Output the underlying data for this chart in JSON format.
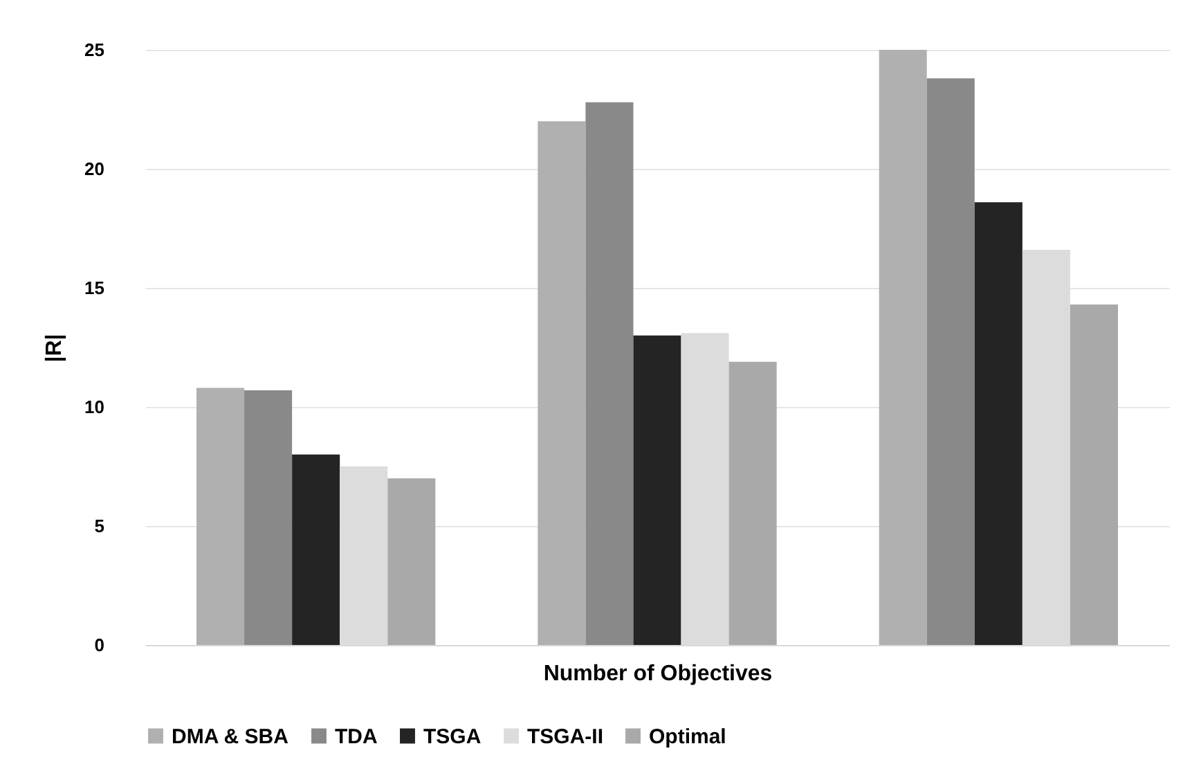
{
  "chart_data": {
    "type": "bar",
    "xlabel": "Number of Objectives",
    "ylabel": "|R|",
    "categories": [
      null,
      null,
      null
    ],
    "series": [
      {
        "name": "DMA & SBA",
        "color": "#b0b0b0",
        "values": [
          10.8,
          22.0,
          25.0
        ]
      },
      {
        "name": "TDA",
        "color": "#898989",
        "values": [
          10.7,
          22.8,
          23.8
        ]
      },
      {
        "name": "TSGA",
        "color": "#242424",
        "values": [
          8.0,
          13.0,
          18.6
        ]
      },
      {
        "name": "TSGA-II",
        "color": "#dcdcdc",
        "values": [
          7.5,
          13.1,
          16.6
        ]
      },
      {
        "name": "Optimal",
        "color": "#a9a9a9",
        "values": [
          7.0,
          11.9,
          14.3
        ]
      }
    ],
    "ylim": [
      0,
      25
    ],
    "yticks": [
      0,
      5,
      10,
      15,
      20,
      25
    ],
    "grid": "y",
    "legend": "bottom",
    "tick_labels": "y"
  }
}
